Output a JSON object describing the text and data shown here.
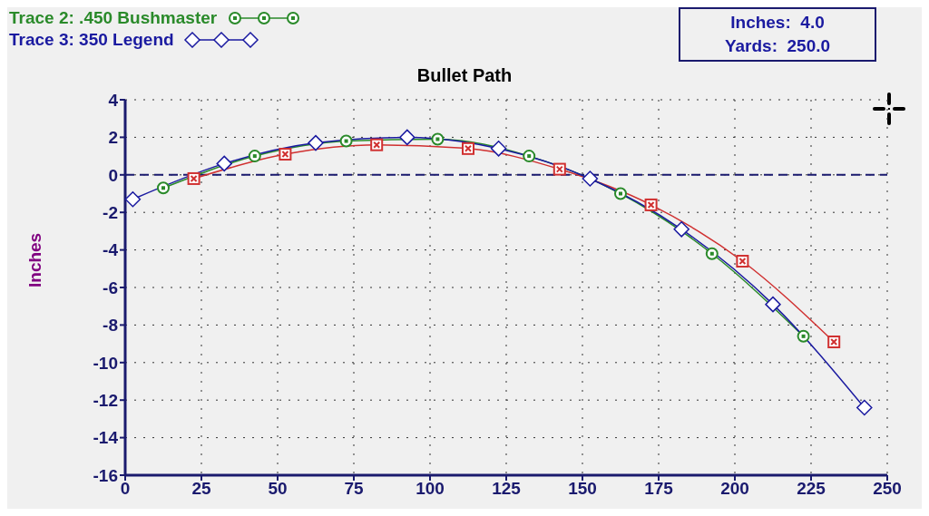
{
  "chart_data": {
    "type": "line",
    "title": "Bullet Path",
    "ylabel": "Inches",
    "xlim": [
      0,
      250
    ],
    "xticks": [
      0,
      25,
      50,
      75,
      100,
      125,
      150,
      175,
      200,
      225,
      250
    ],
    "ylim": [
      -16,
      4
    ],
    "yticks": [
      -16,
      -14,
      -12,
      -10,
      -8,
      -6,
      -4,
      -2,
      0,
      2,
      4
    ],
    "grid": true,
    "legend": "top left",
    "annotations": [
      "Inches:  4.0",
      "Yards:  250.0"
    ],
    "ref_lines": [
      {
        "axis": "y",
        "value": 0,
        "color": "#1a1a6e",
        "line_style": "dashed"
      }
    ],
    "series": [
      {
        "color": "#d03030",
        "marker": "square",
        "x": [
          22.5,
          52.5,
          82.5,
          112.5,
          142.5,
          172.5,
          202.5,
          232.5
        ],
        "values": [
          -0.2,
          1.1,
          1.6,
          1.4,
          0.3,
          -1.6,
          -4.6,
          -8.9
        ]
      },
      {
        "name": "Trace 2:  .450 Bushmaster",
        "color": "#2a8a2a",
        "marker": "circle",
        "x": [
          12.5,
          42.5,
          72.5,
          102.5,
          132.5,
          162.5,
          192.5,
          222.5
        ],
        "values": [
          -0.7,
          1.0,
          1.8,
          1.9,
          1.0,
          -1.0,
          -4.2,
          -8.6
        ]
      },
      {
        "name": "Trace 3:  350 Legend",
        "color": "#1a1aa0",
        "marker": "diamond",
        "x": [
          2.5,
          32.5,
          62.5,
          92.5,
          122.5,
          152.5,
          182.5,
          212.5,
          242.5
        ],
        "values": [
          -1.3,
          0.6,
          1.7,
          2.0,
          1.4,
          -0.2,
          -2.9,
          -6.9,
          -12.4
        ]
      }
    ]
  }
}
